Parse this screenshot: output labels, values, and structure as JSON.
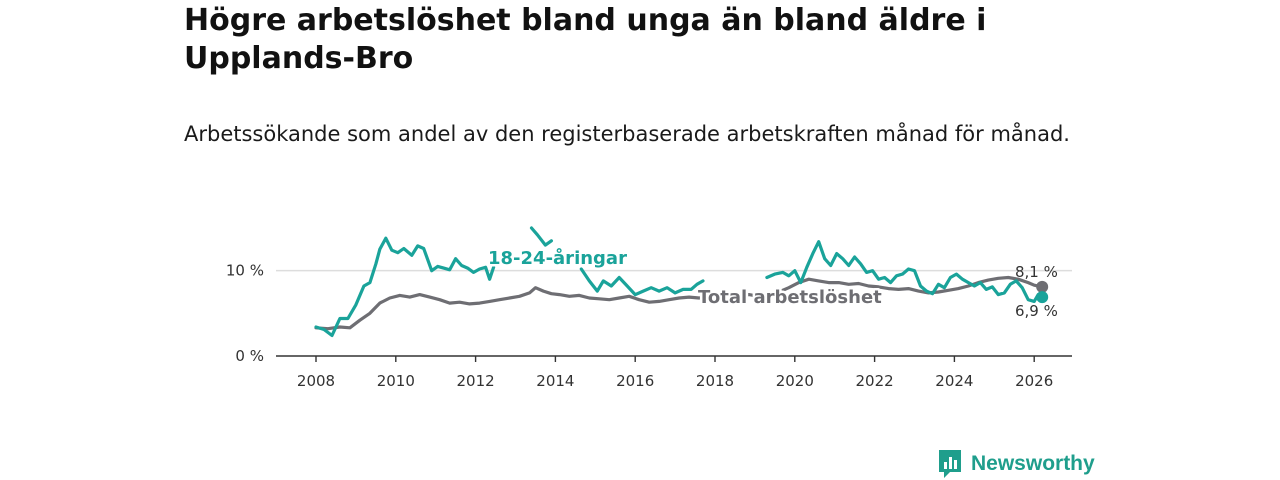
{
  "title": "Högre arbetslöshet bland unga än bland äldre i Upplands-Bro",
  "subtitle": "Arbetssökande som andel av den registerbaserade arbetskraften månad för månad.",
  "brand": "Newsworthy",
  "colors": {
    "youth": "#1aa39a",
    "total": "#6e6e73",
    "grid": "#dddddd",
    "axis": "#333333",
    "brand": "#1f9e8c"
  },
  "chart_data": {
    "type": "line",
    "title": "Högre arbetslöshet bland unga än bland äldre i Upplands-Bro",
    "xlabel": "",
    "ylabel": "",
    "xlim": [
      2007.5,
      2027
    ],
    "ylim": [
      0,
      15
    ],
    "x_ticks": [
      2008,
      2010,
      2012,
      2014,
      2016,
      2018,
      2020,
      2022,
      2024,
      2026
    ],
    "y_ticks": [
      {
        "value": 0,
        "label": "0 %"
      },
      {
        "value": 10,
        "label": "10 %"
      }
    ],
    "grid": true,
    "series": [
      {
        "name": "18-24-åringar",
        "label": "18-24-åringar",
        "end_label": "6,9 %",
        "end_value": 6.9,
        "x": [
          2008.0,
          2008.2,
          2008.4,
          2008.6,
          2008.8,
          2009.0,
          2009.2,
          2009.35,
          2009.5,
          2009.6,
          2009.75,
          2009.9,
          2010.05,
          2010.2,
          2010.4,
          2010.55,
          2010.7,
          2010.9,
          2011.05,
          2011.2,
          2011.35,
          2011.5,
          2011.65,
          2011.8,
          2011.95,
          2012.1,
          2012.25,
          2012.35,
          2012.45,
          null,
          2013.4,
          2013.55,
          2013.75,
          2013.9,
          null,
          2014.65,
          2014.85,
          2015.05,
          2015.2,
          2015.4,
          2015.6,
          2015.8,
          2016.0,
          2016.2,
          2016.4,
          2016.6,
          2016.8,
          2017.0,
          2017.2,
          2017.4,
          2017.55,
          2017.7,
          null,
          2019.3,
          2019.5,
          2019.7,
          2019.85,
          2020.0,
          2020.15,
          2020.3,
          2020.45,
          2020.6,
          2020.75,
          2020.9,
          2021.05,
          2021.2,
          2021.35,
          2021.5,
          2021.65,
          2021.8,
          2021.95,
          2022.1,
          2022.25,
          2022.4,
          2022.55,
          2022.7,
          2022.85,
          2023.0,
          2023.15,
          2023.3,
          2023.45,
          2023.6,
          2023.75,
          2023.9,
          2024.05,
          2024.2,
          2024.35,
          2024.5,
          2024.65,
          2024.8,
          2024.95,
          2025.1,
          2025.25,
          2025.4,
          2025.55,
          2025.7,
          2025.85,
          2026.0,
          2026.1,
          2026.2
        ],
        "values": [
          3.4,
          3.1,
          2.4,
          4.4,
          4.4,
          6.0,
          8.2,
          8.6,
          10.8,
          12.5,
          13.8,
          12.4,
          12.1,
          12.6,
          11.8,
          12.9,
          12.6,
          10.0,
          10.5,
          10.3,
          10.1,
          11.4,
          10.6,
          10.3,
          9.8,
          10.2,
          10.4,
          9.0,
          10.4,
          null,
          15.0,
          14.2,
          13.0,
          13.5,
          null,
          10.2,
          8.8,
          7.6,
          8.8,
          8.2,
          9.2,
          8.2,
          7.2,
          7.6,
          8.0,
          7.6,
          8.0,
          7.4,
          7.8,
          7.8,
          8.4,
          8.8,
          null,
          9.2,
          9.6,
          9.8,
          9.4,
          10.0,
          8.6,
          10.4,
          12.0,
          13.4,
          11.4,
          10.6,
          12.0,
          11.4,
          10.6,
          11.6,
          10.8,
          9.8,
          10.0,
          9.0,
          9.2,
          8.6,
          9.4,
          9.6,
          10.2,
          10.0,
          8.2,
          7.6,
          7.3,
          8.4,
          8.0,
          9.2,
          9.6,
          9.0,
          8.6,
          8.2,
          8.6,
          7.8,
          8.1,
          7.2,
          7.4,
          8.4,
          8.8,
          8.0,
          6.6,
          6.4,
          7.2,
          6.9
        ]
      },
      {
        "name": "Total arbetslöshet",
        "label": "Total arbetslöshet",
        "end_label": "8,1 %",
        "end_value": 8.1,
        "x": [
          2008.0,
          2008.3,
          2008.6,
          2008.85,
          2009.1,
          2009.35,
          2009.6,
          2009.85,
          2010.1,
          2010.35,
          2010.6,
          2010.85,
          2011.1,
          2011.35,
          2011.6,
          2011.85,
          2012.1,
          2012.35,
          2012.6,
          2012.85,
          2013.1,
          2013.35,
          2013.5,
          2013.7,
          2013.9,
          2014.1,
          2014.35,
          2014.6,
          2014.85,
          2015.1,
          2015.35,
          2015.6,
          2015.85,
          2016.1,
          2016.35,
          2016.6,
          2016.85,
          2017.1,
          2017.35,
          2017.6,
          2017.85,
          2018.1,
          2018.35,
          2018.6,
          2018.85,
          2019.1,
          2019.35,
          2019.6,
          2019.85,
          2020.1,
          2020.35,
          2020.6,
          2020.85,
          2021.1,
          2021.35,
          2021.6,
          2021.85,
          2022.1,
          2022.35,
          2022.6,
          2022.85,
          2023.1,
          2023.35,
          2023.6,
          2023.85,
          2024.1,
          2024.35,
          2024.6,
          2024.85,
          2025.1,
          2025.35,
          2025.6,
          2025.85,
          2026.0,
          2026.2
        ],
        "values": [
          3.3,
          3.2,
          3.4,
          3.3,
          4.2,
          5.0,
          6.2,
          6.8,
          7.1,
          6.9,
          7.2,
          6.9,
          6.6,
          6.2,
          6.3,
          6.1,
          6.2,
          6.4,
          6.6,
          6.8,
          7.0,
          7.4,
          8.0,
          7.6,
          7.3,
          7.2,
          7.0,
          7.1,
          6.8,
          6.7,
          6.6,
          6.8,
          7.0,
          6.6,
          6.3,
          6.4,
          6.6,
          6.8,
          6.9,
          6.8,
          6.9,
          7.0,
          7.1,
          7.1,
          7.2,
          7.0,
          7.3,
          7.5,
          8.0,
          8.6,
          9.0,
          8.8,
          8.6,
          8.6,
          8.4,
          8.5,
          8.2,
          8.1,
          7.9,
          7.8,
          7.9,
          7.6,
          7.4,
          7.5,
          7.7,
          7.9,
          8.2,
          8.6,
          8.9,
          9.1,
          9.2,
          9.0,
          8.6,
          8.3,
          8.1
        ]
      }
    ]
  }
}
